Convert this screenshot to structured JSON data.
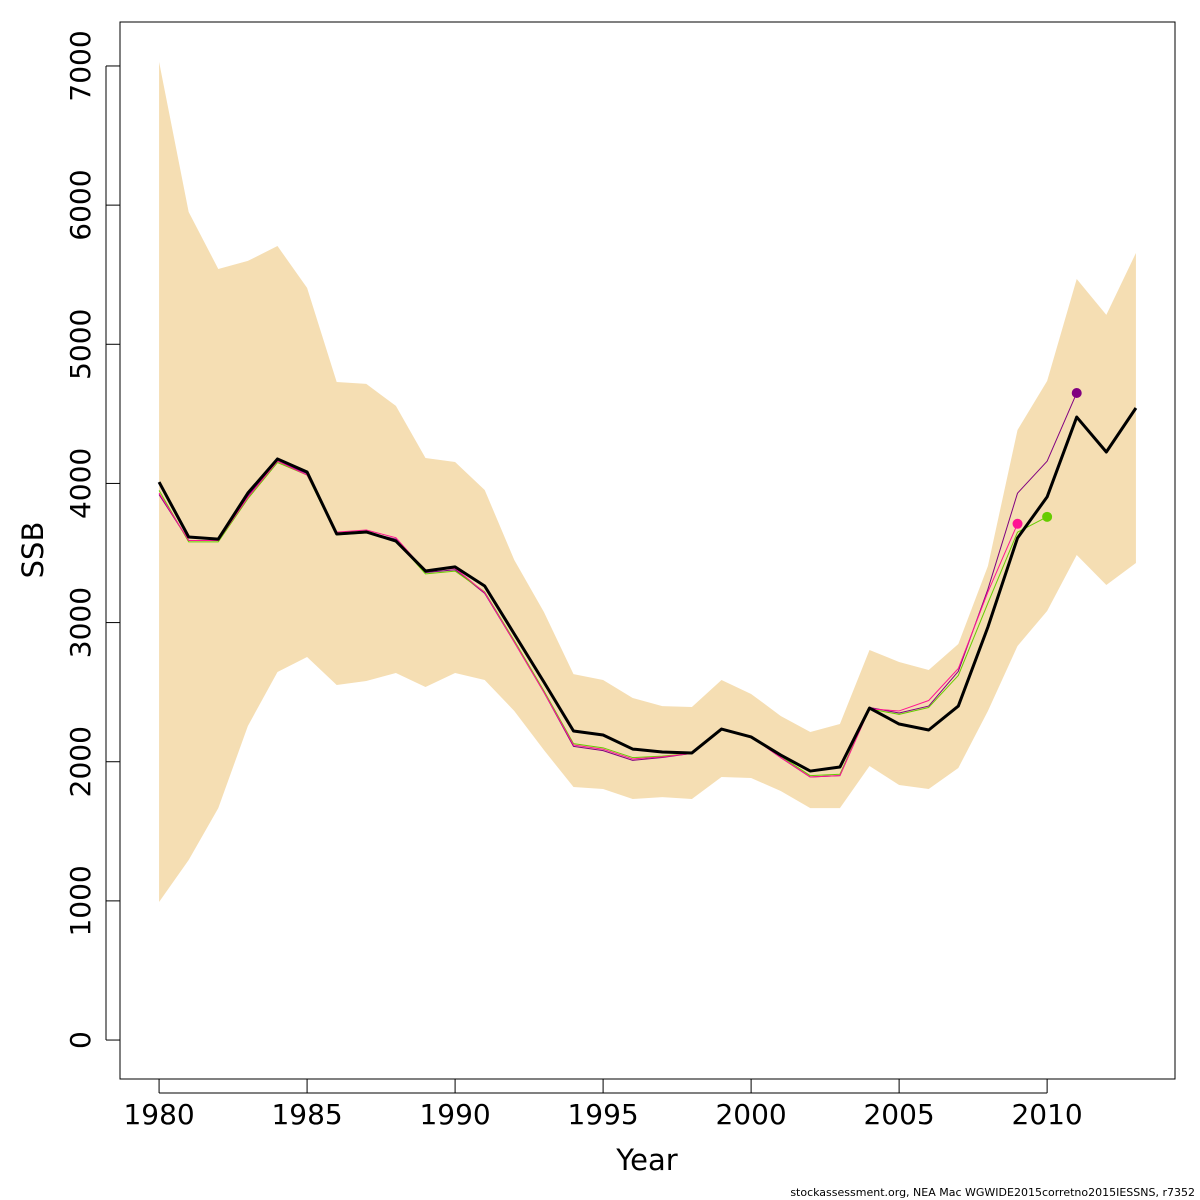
{
  "chart_data": {
    "type": "line",
    "xlabel": "Year",
    "ylabel": "SSB",
    "footnote": "stockassessment.org, NEA  Mac  WGWIDE2015corretno2015IESSNS, r7352",
    "x": [
      1980,
      1981,
      1982,
      1983,
      1984,
      1985,
      1986,
      1987,
      1988,
      1989,
      1990,
      1991,
      1992,
      1993,
      1994,
      1995,
      1996,
      1997,
      1998,
      1999,
      2000,
      2001,
      2002,
      2003,
      2004,
      2005,
      2006,
      2007,
      2008,
      2009,
      2010,
      2011,
      2012,
      2013
    ],
    "band": {
      "color": "#f5deb3",
      "upper": [
        7029,
        5951,
        5541,
        5599,
        5706,
        5405,
        4729,
        4715,
        4557,
        4183,
        4154,
        3953,
        3450,
        3076,
        2630,
        2587,
        2458,
        2400,
        2393,
        2587,
        2487,
        2329,
        2214,
        2271,
        2803,
        2717,
        2659,
        2846,
        3407,
        4384,
        4736,
        5469,
        5211,
        5656
      ],
      "lower": [
        992,
        1294,
        1667,
        2257,
        2645,
        2753,
        2551,
        2580,
        2638,
        2537,
        2638,
        2587,
        2365,
        2084,
        1818,
        1804,
        1732,
        1746,
        1732,
        1890,
        1883,
        1790,
        1667,
        1667,
        1969,
        1833,
        1804,
        1955,
        2365,
        2832,
        3083,
        3486,
        3270,
        3428
      ]
    },
    "series": [
      {
        "color": "#800080",
        "width": 1,
        "end_marker": true,
        "values": [
          3920,
          3590,
          3590,
          3910,
          4160,
          4070,
          3640,
          3650,
          3600,
          3360,
          3380,
          3210,
          2860,
          2500,
          2110,
          2080,
          2010,
          2030,
          2060,
          2240,
          2180,
          2030,
          1890,
          1900,
          2390,
          2350,
          2400,
          2650,
          3240,
          3930,
          4160,
          4650,
          null,
          null
        ]
      },
      {
        "color": "#66cc00",
        "width": 1,
        "end_marker": true,
        "values": [
          3950,
          3580,
          3580,
          3890,
          4150,
          4060,
          3630,
          3645,
          3590,
          3350,
          3370,
          3220,
          2870,
          2510,
          2130,
          2100,
          2030,
          2040,
          2060,
          2230,
          2180,
          2040,
          1900,
          1910,
          2380,
          2340,
          2390,
          2620,
          3140,
          3650,
          3760,
          null,
          null,
          null
        ]
      },
      {
        "color": "#ff1493",
        "width": 1,
        "end_marker": true,
        "values": [
          3930,
          3590,
          3590,
          3900,
          4160,
          4060,
          3650,
          3665,
          3610,
          3370,
          3390,
          3215,
          2860,
          2500,
          2120,
          2090,
          2020,
          2035,
          2060,
          2240,
          2180,
          2030,
          1890,
          1900,
          2380,
          2365,
          2440,
          2670,
          3220,
          3710,
          null,
          null,
          null,
          null
        ]
      },
      {
        "color": "#000000",
        "width": 3,
        "end_marker": false,
        "values": [
          4010,
          3615,
          3600,
          3931,
          4176,
          4082,
          3637,
          3651,
          3586,
          3371,
          3400,
          3263,
          2918,
          2573,
          2221,
          2192,
          2091,
          2070,
          2063,
          2235,
          2178,
          2048,
          1933,
          1962,
          2386,
          2271,
          2228,
          2400,
          2968,
          3608,
          3903,
          4477,
          4226,
          4542
        ]
      }
    ],
    "xlim": [
      1978.68,
      2014.32
    ],
    "ylim": [
      -280,
      7316
    ],
    "xticks": [
      1980,
      1985,
      1990,
      1995,
      2000,
      2005,
      2010
    ],
    "yticks": [
      0,
      1000,
      2000,
      3000,
      4000,
      5000,
      6000,
      7000
    ]
  }
}
